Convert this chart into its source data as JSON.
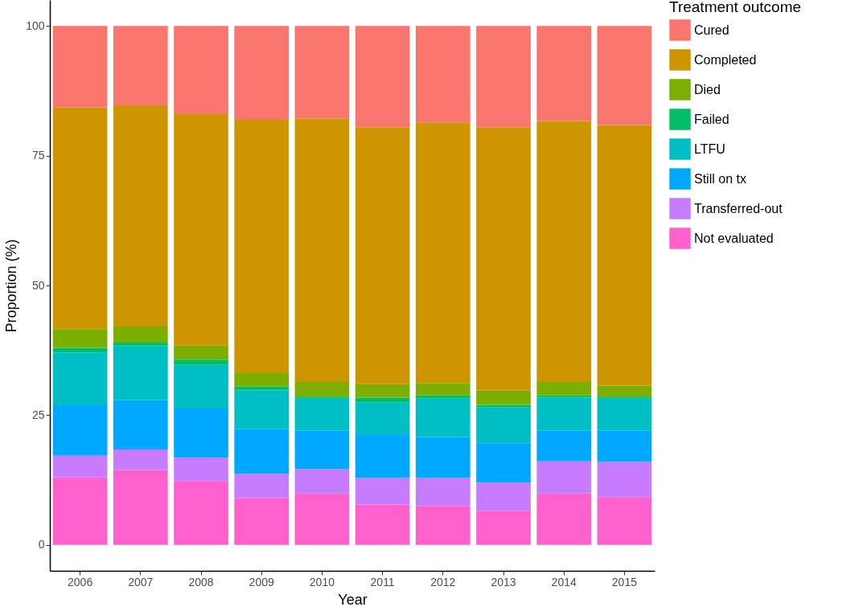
{
  "chart_data": {
    "type": "bar",
    "stacked": true,
    "xlabel": "Year",
    "ylabel": "Proportion (%)",
    "legend_title": "Treatment outcome",
    "legend": "right",
    "grid": false,
    "categories": [
      "2006",
      "2007",
      "2008",
      "2009",
      "2010",
      "2011",
      "2012",
      "2013",
      "2014",
      "2015"
    ],
    "ylim": [
      -5,
      105
    ],
    "yticks": [
      0,
      25,
      50,
      75,
      100
    ],
    "series": [
      {
        "name": "Not evaluated",
        "color": "#ff61cc",
        "values": [
          13.0,
          14.4,
          12.3,
          9.0,
          9.9,
          7.8,
          7.5,
          6.6,
          9.9,
          9.2
        ]
      },
      {
        "name": "Transferred-out",
        "color": "#c77cff",
        "values": [
          4.2,
          4.0,
          4.5,
          4.7,
          4.7,
          5.1,
          5.4,
          5.4,
          6.2,
          6.8
        ]
      },
      {
        "name": "Still on tx",
        "color": "#00a9ff",
        "values": [
          9.7,
          9.5,
          9.5,
          8.6,
          7.4,
          8.3,
          7.9,
          7.6,
          5.9,
          6.0
        ]
      },
      {
        "name": "LTFU",
        "color": "#00bfc4",
        "values": [
          10.2,
          10.4,
          8.4,
          7.5,
          6.2,
          6.2,
          7.4,
          6.9,
          6.4,
          6.2
        ]
      },
      {
        "name": "Failed",
        "color": "#00be67",
        "values": [
          0.9,
          0.7,
          1.0,
          0.7,
          0.4,
          1.0,
          0.6,
          0.5,
          0.4,
          0.4
        ]
      },
      {
        "name": "Died",
        "color": "#7cae00",
        "values": [
          3.6,
          3.1,
          2.7,
          2.6,
          2.8,
          2.6,
          2.4,
          2.8,
          2.6,
          2.1
        ]
      },
      {
        "name": "Completed",
        "color": "#cd9600",
        "values": [
          42.7,
          42.6,
          44.6,
          48.8,
          50.8,
          49.5,
          50.2,
          50.7,
          50.3,
          50.2
        ]
      },
      {
        "name": "Cured",
        "color": "#f8766d",
        "values": [
          15.7,
          15.3,
          17.0,
          18.1,
          17.8,
          19.5,
          18.6,
          19.5,
          18.3,
          19.1
        ]
      }
    ]
  }
}
